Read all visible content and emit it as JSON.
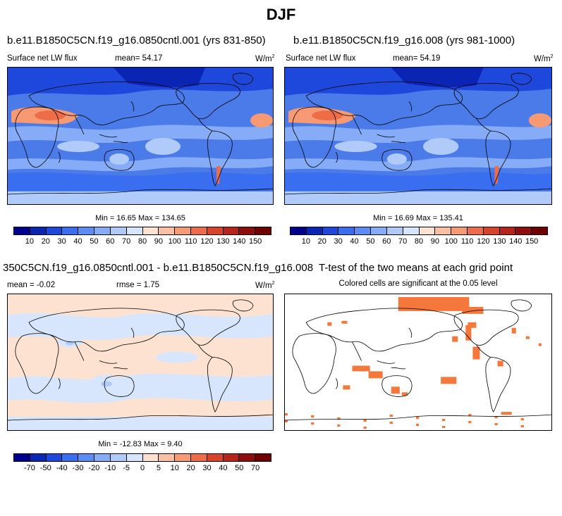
{
  "figure": {
    "title": "DJF"
  },
  "panels": {
    "p1": {
      "title": "b.e11.B1850C5CN.f19_g16.0850cntl.001 (yrs 831-850)",
      "variable": "Surface net LW flux",
      "mean_label": "mean=  54.17",
      "units": "W/m",
      "units_exp": "2",
      "minmax": "Min = 16.65 Max = 134.65"
    },
    "p2": {
      "title": "b.e11.B1850C5CN.f19_g16.008 (yrs 981-1000)",
      "variable": "Surface net LW flux",
      "mean_label": "mean=  54.19",
      "units": "W/m",
      "units_exp": "2",
      "minmax": "Min = 16.69 Max = 135.41"
    },
    "p3": {
      "title": "350C5CN.f19_g16.0850cntl.001 - b.e11.B1850C5CN.f19_g16.008",
      "mean_label": "mean =  -0.02",
      "rmse_label": "rmse =   1.75",
      "units": "W/m",
      "units_exp": "2",
      "minmax": "Min = -12.83 Max =   9.40"
    },
    "p4": {
      "title": "T-test of the two means at each grid point",
      "subtitle": "Colored cells are significant at the 0.05 level"
    }
  },
  "colorbar_abs": {
    "labels": [
      "10",
      "20",
      "30",
      "40",
      "50",
      "60",
      "70",
      "80",
      "90",
      "100",
      "110",
      "120",
      "130",
      "140",
      "150"
    ],
    "colors": [
      "#00008f",
      "#0a24b4",
      "#1e48dc",
      "#3a6ef0",
      "#5c8cf5",
      "#86acf7",
      "#b0cbfa",
      "#d8e6fd",
      "#fde2d2",
      "#fbc0a2",
      "#f79a74",
      "#ef6c48",
      "#d9432a",
      "#b8231a",
      "#900d0d",
      "#6e0000"
    ]
  },
  "colorbar_diff": {
    "labels": [
      "-70",
      "-50",
      "-40",
      "-30",
      "-20",
      "-10",
      "-5",
      "0",
      "5",
      "10",
      "20",
      "30",
      "40",
      "50",
      "70"
    ],
    "colors": [
      "#00008f",
      "#0a24b4",
      "#1e48dc",
      "#3a6ef0",
      "#5c8cf5",
      "#86acf7",
      "#b0cbfa",
      "#d8e6fd",
      "#fde2d2",
      "#fbc0a2",
      "#f79a74",
      "#ef6c48",
      "#d9432a",
      "#b8231a",
      "#900d0d",
      "#6e0000"
    ]
  },
  "map_colors": {
    "ocean_base": "#4a7be8",
    "band_light": "#86acf7",
    "band_dark": "#1e48dc",
    "desert_warm": "#f79a74",
    "desert_hot": "#ef6c48",
    "diff_pos": "#fde2d2",
    "diff_neg": "#d8e6fd",
    "signif": "#f4783c"
  }
}
